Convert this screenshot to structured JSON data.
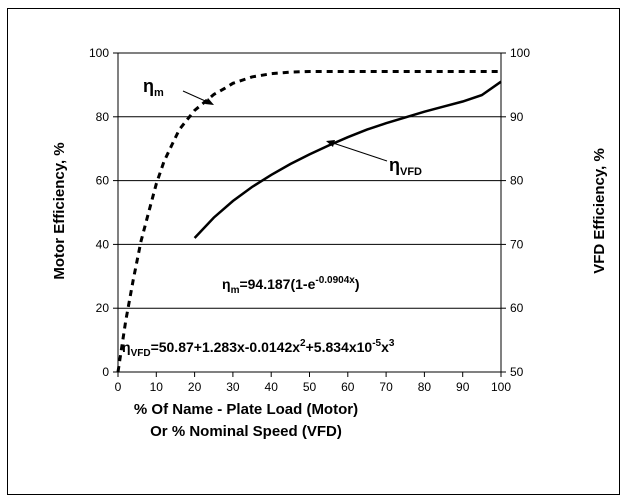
{
  "chart_data": {
    "type": "line",
    "xlabel_line1": "% Of Name - Plate Load (Motor)",
    "xlabel_line2": "Or % Nominal Speed (VFD)",
    "ylabel_left": "Motor Efficiency, %",
    "ylabel_right": "VFD Efficiency, %",
    "xlim": [
      0,
      100
    ],
    "ylim_left": [
      0,
      100
    ],
    "ylim_right": [
      50,
      100
    ],
    "x_ticks": [
      "0",
      "10",
      "20",
      "30",
      "40",
      "50",
      "60",
      "70",
      "80",
      "90",
      "100"
    ],
    "y_ticks_left": [
      "0",
      "20",
      "40",
      "60",
      "80",
      "100"
    ],
    "y_ticks_right": [
      "50",
      "60",
      "70",
      "80",
      "90",
      "100"
    ],
    "grid": "horizontal",
    "series": [
      {
        "name": "ηm",
        "axis": "left",
        "style": "dashed",
        "x": [
          0,
          2,
          4,
          6,
          8,
          10,
          12,
          14,
          16,
          18,
          20,
          22,
          25,
          28,
          30,
          35,
          40,
          45,
          50,
          55,
          60,
          65,
          70,
          75,
          80,
          85,
          90,
          95,
          100
        ],
        "y": [
          0,
          16,
          29,
          41,
          50,
          59,
          66,
          71,
          76,
          79,
          82,
          84,
          87,
          89,
          90.5,
          92.5,
          93.5,
          94,
          94.2,
          94.2,
          94.2,
          94.2,
          94.2,
          94.2,
          94.2,
          94.2,
          94.2,
          94.2,
          94.2
        ]
      },
      {
        "name": "ηVFD",
        "axis": "right",
        "style": "solid",
        "x": [
          20,
          25,
          30,
          35,
          40,
          45,
          50,
          55,
          60,
          65,
          70,
          75,
          80,
          85,
          90,
          95,
          100
        ],
        "y": [
          71.0,
          74.2,
          76.8,
          79.0,
          80.9,
          82.6,
          84.1,
          85.5,
          86.8,
          88.0,
          89.0,
          89.9,
          90.8,
          91.6,
          92.4,
          93.4,
          95.5
        ]
      }
    ],
    "labels": {
      "motor_label": "ηm",
      "vfd_label": "ηVFD",
      "eq1": "ηm=94.187(1-e-0.0904x)",
      "eq2": "ηVFD=50.87+1.283x-0.0142x2+5.834x10-5x3"
    }
  }
}
